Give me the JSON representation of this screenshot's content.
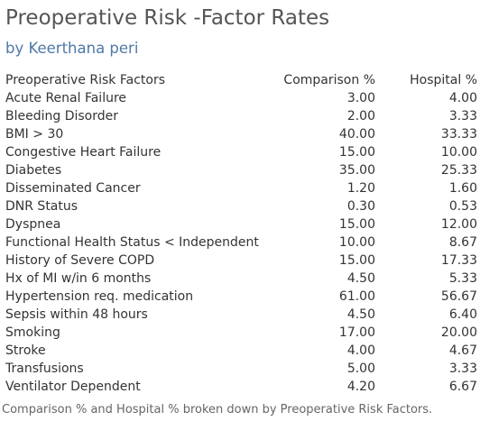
{
  "title": "Preoperative Risk -Factor Rates",
  "subtitle": "by Keerthana peri",
  "caption": "Comparison % and Hospital % broken down by Preoperative Risk Factors.",
  "chart_data": {
    "type": "table",
    "title": "Preoperative Risk -Factor Rates",
    "subtitle": "by Keerthana peri",
    "columns": [
      "Preoperative Risk Factors",
      "Comparison %",
      "Hospital %"
    ],
    "rows": [
      {
        "factor": "Acute Renal Failure",
        "comparison": "3.00",
        "hospital": "4.00"
      },
      {
        "factor": "Bleeding Disorder",
        "comparison": "2.00",
        "hospital": "3.33"
      },
      {
        "factor": "BMI > 30",
        "comparison": "40.00",
        "hospital": "33.33"
      },
      {
        "factor": "Congestive Heart Failure",
        "comparison": "15.00",
        "hospital": "10.00"
      },
      {
        "factor": "Diabetes",
        "comparison": "35.00",
        "hospital": "25.33"
      },
      {
        "factor": "Disseminated Cancer",
        "comparison": "1.20",
        "hospital": "1.60"
      },
      {
        "factor": "DNR Status",
        "comparison": "0.30",
        "hospital": "0.53"
      },
      {
        "factor": "Dyspnea",
        "comparison": "15.00",
        "hospital": "12.00"
      },
      {
        "factor": "Functional Health Status < Independent",
        "comparison": "10.00",
        "hospital": "8.67"
      },
      {
        "factor": "History of Severe COPD",
        "comparison": "15.00",
        "hospital": "17.33"
      },
      {
        "factor": "Hx of MI w/in 6 months",
        "comparison": "4.50",
        "hospital": "5.33"
      },
      {
        "factor": "Hypertension req. medication",
        "comparison": "61.00",
        "hospital": "56.67"
      },
      {
        "factor": "Sepsis within 48 hours",
        "comparison": "4.50",
        "hospital": "6.40"
      },
      {
        "factor": "Smoking",
        "comparison": "17.00",
        "hospital": "20.00"
      },
      {
        "factor": "Stroke",
        "comparison": "4.00",
        "hospital": "4.67"
      },
      {
        "factor": "Transfusions",
        "comparison": "5.00",
        "hospital": "3.33"
      },
      {
        "factor": "Ventilator Dependent",
        "comparison": "4.20",
        "hospital": "6.67"
      }
    ]
  }
}
